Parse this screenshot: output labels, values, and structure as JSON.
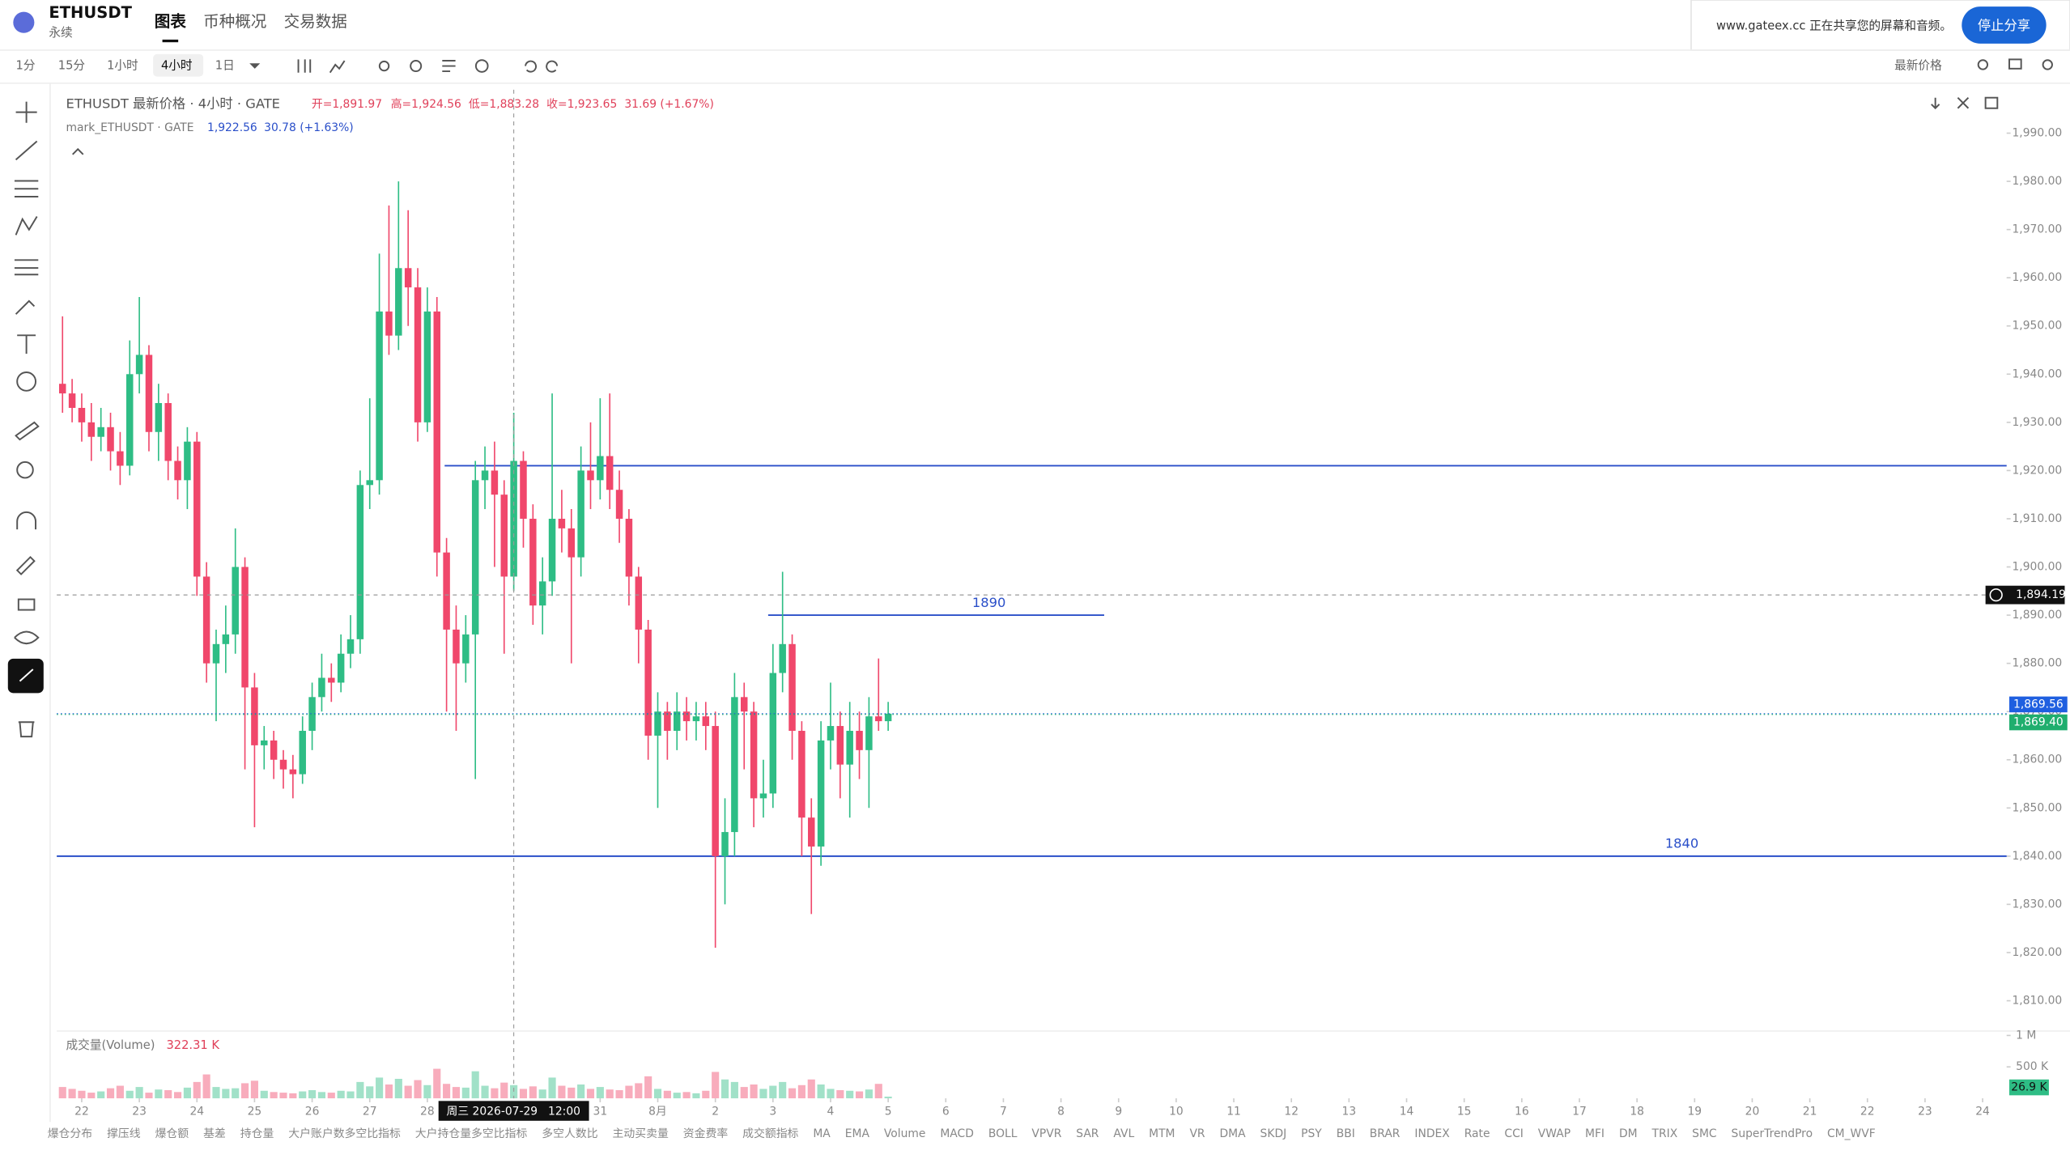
{
  "header": {
    "symbol": "ETHUSDT",
    "contract": "永续",
    "tabs": [
      "图表",
      "币种概况",
      "交易数据"
    ]
  },
  "share_banner": {
    "text": "www.gateex.cc 正在共享您的屏幕和音频。",
    "button": "停止分享"
  },
  "toolbar": {
    "intervals": [
      "1分",
      "15分",
      "1小时",
      "4小时",
      "1日"
    ],
    "price_type": "最新价格"
  },
  "chart_data": {
    "type": "candlestick",
    "legend": {
      "title": "ETHUSDT 最新价格 · 4小时 · GATE",
      "open": "开=1,891.97",
      "high": "高=1,924.56",
      "low": "低=1,883.28",
      "close": "收=1,923.65",
      "change": "31.69 (+1.67%)",
      "mark": "mark_ETHUSDT · GATE",
      "mark_value": "1,922.56",
      "mark_change": "30.78 (+1.63%)"
    },
    "open": [
      1938,
      1936,
      1933,
      1930,
      1927,
      1929,
      1924,
      1921,
      1940,
      1944,
      1928,
      1934,
      1922,
      1918,
      1926,
      1898,
      1880,
      1884,
      1886,
      1900,
      1875,
      1863,
      1864,
      1860,
      1858,
      1857,
      1866,
      1873,
      1877,
      1876,
      1882,
      1885,
      1917,
      1918,
      1953,
      1948,
      1962,
      1958,
      1930,
      1953,
      1903,
      1887,
      1880,
      1886,
      1918,
      1920,
      1915,
      1898,
      1922,
      1910,
      1892,
      1897,
      1910,
      1908,
      1902,
      1920,
      1918,
      1923,
      1916,
      1910,
      1898,
      1887,
      1865,
      1870,
      1866,
      1870,
      1868,
      1869,
      1867,
      1840,
      1845,
      1873,
      1870,
      1852,
      1853,
      1878,
      1884,
      1866,
      1848,
      1842,
      1864,
      1867,
      1859,
      1866,
      1862,
      1869,
      1868
    ],
    "high": [
      1952,
      1939,
      1936,
      1934,
      1933,
      1932,
      1928,
      1947,
      1956,
      1946,
      1938,
      1936,
      1925,
      1929,
      1928,
      1901,
      1887,
      1892,
      1908,
      1902,
      1878,
      1867,
      1866,
      1862,
      1861,
      1869,
      1876,
      1882,
      1880,
      1886,
      1890,
      1920,
      1935,
      1965,
      1975,
      1980,
      1974,
      1962,
      1958,
      1956,
      1906,
      1892,
      1890,
      1922,
      1925,
      1926,
      1918,
      1932,
      1924,
      1913,
      1902,
      1936,
      1916,
      1912,
      1925,
      1930,
      1935,
      1936,
      1920,
      1912,
      1900,
      1889,
      1874,
      1872,
      1874,
      1873,
      1872,
      1872,
      1870,
      1852,
      1878,
      1876,
      1872,
      1860,
      1884,
      1899,
      1886,
      1868,
      1852,
      1868,
      1876,
      1870,
      1872,
      1870,
      1873,
      1881,
      1872
    ],
    "low": [
      1932,
      1930,
      1926,
      1922,
      1924,
      1920,
      1917,
      1919,
      1936,
      1924,
      1922,
      1918,
      1914,
      1912,
      1894,
      1876,
      1868,
      1878,
      1882,
      1858,
      1846,
      1858,
      1856,
      1854,
      1852,
      1855,
      1862,
      1870,
      1872,
      1874,
      1879,
      1882,
      1912,
      1915,
      1944,
      1945,
      1950,
      1926,
      1928,
      1898,
      1870,
      1866,
      1876,
      1856,
      1912,
      1900,
      1882,
      1895,
      1904,
      1888,
      1886,
      1894,
      1903,
      1880,
      1898,
      1912,
      1914,
      1912,
      1905,
      1892,
      1880,
      1860,
      1850,
      1860,
      1862,
      1864,
      1864,
      1862,
      1821,
      1830,
      1840,
      1858,
      1846,
      1848,
      1850,
      1874,
      1860,
      1840,
      1828,
      1838,
      1858,
      1852,
      1848,
      1856,
      1850,
      1866,
      1866
    ],
    "close": [
      1936,
      1933,
      1930,
      1927,
      1929,
      1924,
      1921,
      1940,
      1944,
      1928,
      1934,
      1922,
      1918,
      1926,
      1898,
      1880,
      1884,
      1886,
      1900,
      1875,
      1863,
      1864,
      1860,
      1858,
      1857,
      1866,
      1873,
      1877,
      1876,
      1882,
      1885,
      1917,
      1918,
      1953,
      1948,
      1962,
      1958,
      1930,
      1953,
      1903,
      1887,
      1880,
      1886,
      1918,
      1920,
      1915,
      1898,
      1922,
      1910,
      1892,
      1897,
      1910,
      1908,
      1902,
      1920,
      1918,
      1923,
      1916,
      1910,
      1898,
      1887,
      1865,
      1870,
      1866,
      1870,
      1868,
      1869,
      1867,
      1840,
      1845,
      1873,
      1870,
      1852,
      1853,
      1878,
      1884,
      1866,
      1848,
      1842,
      1864,
      1867,
      1859,
      1866,
      1862,
      1869,
      1868,
      1869.56
    ],
    "volume": [
      180000,
      150000,
      120000,
      90000,
      110000,
      160000,
      200000,
      120000,
      180000,
      90000,
      140000,
      130000,
      100000,
      170000,
      260000,
      380000,
      180000,
      150000,
      160000,
      240000,
      280000,
      120000,
      100000,
      90000,
      80000,
      110000,
      130000,
      100000,
      90000,
      120000,
      110000,
      260000,
      190000,
      330000,
      220000,
      310000,
      200000,
      290000,
      210000,
      470000,
      230000,
      180000,
      170000,
      430000,
      200000,
      160000,
      250000,
      210000,
      150000,
      190000,
      140000,
      330000,
      200000,
      170000,
      220000,
      150000,
      180000,
      140000,
      130000,
      200000,
      240000,
      350000,
      150000,
      120000,
      90000,
      100000,
      80000,
      120000,
      420000,
      300000,
      260000,
      180000,
      220000,
      150000,
      200000,
      260000,
      160000,
      210000,
      300000,
      220000,
      150000,
      130000,
      120000,
      110000,
      140000,
      230000,
      26900
    ],
    "up_color": "#2ebd85",
    "down_color": "#f0476b",
    "xlim": [
      -0.6,
      202.5
    ],
    "xticks": [
      {
        "value": 2,
        "label": "22"
      },
      {
        "value": 8,
        "label": "23"
      },
      {
        "value": 14,
        "label": "24"
      },
      {
        "value": 20,
        "label": "25"
      },
      {
        "value": 26,
        "label": "26"
      },
      {
        "value": 32,
        "label": "27"
      },
      {
        "value": 38,
        "label": "28"
      },
      {
        "value": 56,
        "label": "31"
      },
      {
        "value": 62,
        "label": "8月"
      },
      {
        "value": 68,
        "label": "2"
      },
      {
        "value": 74,
        "label": "3"
      },
      {
        "value": 80,
        "label": "4"
      },
      {
        "value": 86,
        "label": "5"
      },
      {
        "value": 92,
        "label": "6"
      },
      {
        "value": 98,
        "label": "7"
      },
      {
        "value": 104,
        "label": "8"
      },
      {
        "value": 110,
        "label": "9"
      },
      {
        "value": 116,
        "label": "10"
      },
      {
        "value": 122,
        "label": "11"
      },
      {
        "value": 128,
        "label": "12"
      },
      {
        "value": 134,
        "label": "13"
      },
      {
        "value": 140,
        "label": "14"
      },
      {
        "value": 146,
        "label": "15"
      },
      {
        "value": 152,
        "label": "16"
      },
      {
        "value": 158,
        "label": "17"
      },
      {
        "value": 164,
        "label": "18"
      },
      {
        "value": 170,
        "label": "19"
      },
      {
        "value": 176,
        "label": "20"
      },
      {
        "value": 182,
        "label": "21"
      },
      {
        "value": 188,
        "label": "22"
      },
      {
        "value": 194,
        "label": "23"
      },
      {
        "value": 200,
        "label": "24"
      }
    ],
    "ylim": [
      1804,
      1999
    ],
    "yticks": [
      {
        "value": 1810,
        "label": "1,810.00"
      },
      {
        "value": 1820,
        "label": "1,820.00"
      },
      {
        "value": 1830,
        "label": "1,830.00"
      },
      {
        "value": 1840,
        "label": "1,840.00"
      },
      {
        "value": 1850,
        "label": "1,850.00"
      },
      {
        "value": 1860,
        "label": "1,860.00"
      },
      {
        "value": 1870,
        "label": "1,870.00"
      },
      {
        "value": 1880,
        "label": "1,880.00"
      },
      {
        "value": 1890,
        "label": "1,890.00"
      },
      {
        "value": 1900,
        "label": "1,900.00"
      },
      {
        "value": 1910,
        "label": "1,910.00"
      },
      {
        "value": 1920,
        "label": "1,920.00"
      },
      {
        "value": 1930,
        "label": "1,930.00"
      },
      {
        "value": 1940,
        "label": "1,940.00"
      },
      {
        "value": 1950,
        "label": "1,950.00"
      },
      {
        "value": 1960,
        "label": "1,960.00"
      },
      {
        "value": 1970,
        "label": "1,970.00"
      },
      {
        "value": 1980,
        "label": "1,980.00"
      },
      {
        "value": 1990,
        "label": "1,990.00"
      }
    ],
    "volume_title": "成交量(Volume)",
    "volume_value": "322.31 K",
    "vlim": [
      0,
      1050000
    ],
    "vticks": [
      {
        "value": 500000,
        "label": "500 K"
      },
      {
        "value": 1000000,
        "label": "1 M"
      }
    ],
    "volume_last": {
      "value": 26900,
      "label": "26.9 K"
    },
    "price_lines": [
      {
        "value": 1869.56,
        "label": "1,869.56",
        "color": "#1f5fe0"
      },
      {
        "value": 1869.4,
        "label": "1,869.40",
        "color": "#1fae6e"
      }
    ],
    "crosshair": {
      "index": 47,
      "date": "周三 2026-07-29",
      "time": "12:00",
      "price": {
        "value": 1894.19,
        "label": "1,894.19"
      }
    },
    "drawings": [
      {
        "value": 1921,
        "start": 39.8,
        "color": "#2a4fc9"
      },
      {
        "label": "1890",
        "value": 1890,
        "start": 73.5,
        "end": 108.5,
        "color": "#2a4fc9"
      },
      {
        "label": "1840",
        "value": 1840,
        "start": -0.6,
        "color": "#2a4fc9"
      }
    ]
  },
  "indicators": [
    "爆仓分布",
    "撑压线",
    "爆仓额",
    "基差",
    "持仓量",
    "大户账户数多空比指标",
    "大户持仓量多空比指标",
    "多空人数比",
    "主动买卖量",
    "资金费率",
    "成交额指标",
    "MA",
    "EMA",
    "Volume",
    "MACD",
    "BOLL",
    "VPVR",
    "SAR",
    "AVL",
    "MTM",
    "VR",
    "DMA",
    "SKDJ",
    "PSY",
    "BBI",
    "BRAR",
    "INDEX",
    "Rate",
    "CCI",
    "VWAP",
    "MFI",
    "DM",
    "TRIX",
    "SMC",
    "SuperTrendPro",
    "CM_WVF"
  ]
}
